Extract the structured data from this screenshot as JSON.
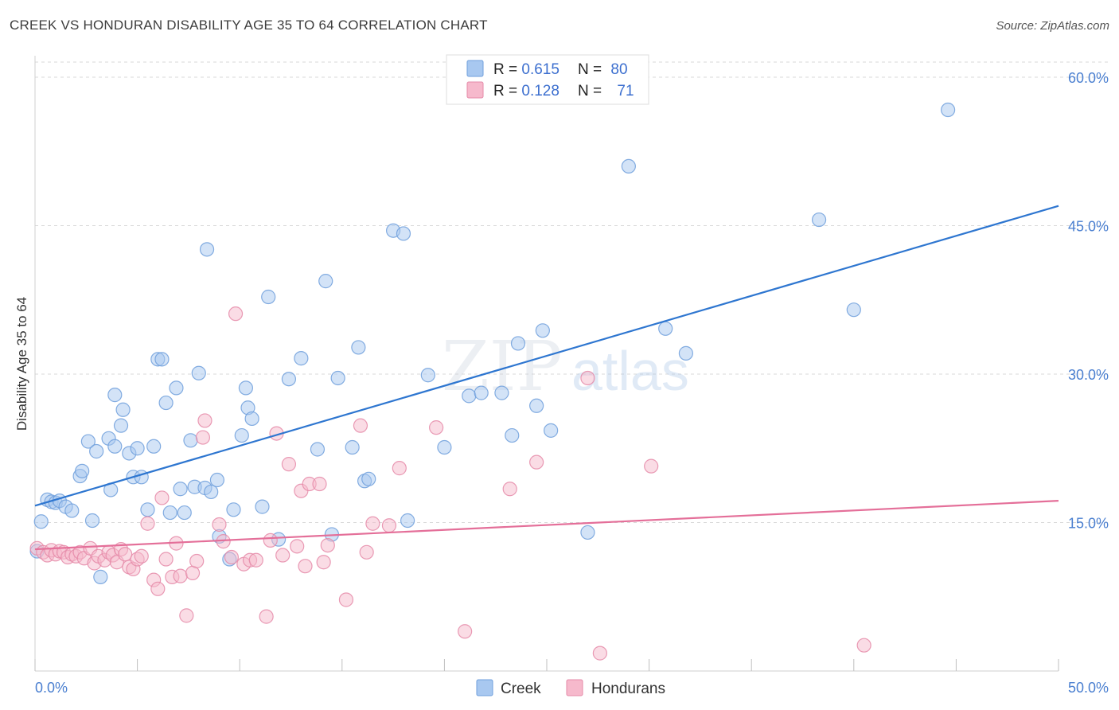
{
  "header": {
    "title": "CREEK VS HONDURAN DISABILITY AGE 35 TO 64 CORRELATION CHART",
    "source": "Source: ZipAtlas.com"
  },
  "watermark": {
    "zip": "ZIP",
    "atlas": "atlas"
  },
  "legend": {
    "rows": [
      {
        "r_label": "R = ",
        "r_value": "0.615",
        "n_label": "N = ",
        "n_value": "80",
        "color": "#a8c8f0",
        "stroke": "#6f9fdc"
      },
      {
        "r_label": "R = ",
        "r_value": "0.128",
        "n_label": "N = ",
        "n_value": "71",
        "color": "#f6b9cc",
        "stroke": "#e58aa8"
      }
    ]
  },
  "chart_data": {
    "type": "scatter",
    "title": "CREEK VS HONDURAN DISABILITY AGE 35 TO 64 CORRELATION CHART",
    "xlabel": "",
    "ylabel": "Disability Age 35 to 64",
    "xlim": [
      0,
      50
    ],
    "ylim": [
      0,
      60
    ],
    "x_tick_labels": [
      "0.0%",
      "50.0%"
    ],
    "y_ticks": [
      15,
      30,
      45,
      60
    ],
    "y_tick_labels": [
      "15.0%",
      "30.0%",
      "45.0%",
      "60.0%"
    ],
    "grid": true,
    "legend_position": "bottom-center",
    "series": [
      {
        "name": "Creek",
        "color": "#a8c8f0",
        "edge": "#6f9fdc",
        "line_color": "#2e76d0",
        "trend": {
          "x": [
            0,
            50
          ],
          "y": [
            16.7,
            47.0
          ]
        },
        "points": [
          [
            0.3,
            15.1
          ],
          [
            0.6,
            17.3
          ],
          [
            0.8,
            17.1
          ],
          [
            1.0,
            17.0
          ],
          [
            1.2,
            17.2
          ],
          [
            1.5,
            16.6
          ],
          [
            1.8,
            16.2
          ],
          [
            2.2,
            19.7
          ],
          [
            2.3,
            20.2
          ],
          [
            2.6,
            23.2
          ],
          [
            2.8,
            15.2
          ],
          [
            3.0,
            22.2
          ],
          [
            3.2,
            9.5
          ],
          [
            3.6,
            23.5
          ],
          [
            3.7,
            18.3
          ],
          [
            3.9,
            27.9
          ],
          [
            4.2,
            24.8
          ],
          [
            4.3,
            26.4
          ],
          [
            4.6,
            22.0
          ],
          [
            4.8,
            19.6
          ],
          [
            5.0,
            22.5
          ],
          [
            5.2,
            19.6
          ],
          [
            5.5,
            16.3
          ],
          [
            5.8,
            22.7
          ],
          [
            6.0,
            31.5
          ],
          [
            6.2,
            31.5
          ],
          [
            6.4,
            27.1
          ],
          [
            6.6,
            16.0
          ],
          [
            6.9,
            28.6
          ],
          [
            7.1,
            18.4
          ],
          [
            7.3,
            16.0
          ],
          [
            7.6,
            23.3
          ],
          [
            7.8,
            18.6
          ],
          [
            8.0,
            30.1
          ],
          [
            8.3,
            18.5
          ],
          [
            8.4,
            42.6
          ],
          [
            8.6,
            18.1
          ],
          [
            8.9,
            19.3
          ],
          [
            9.0,
            13.6
          ],
          [
            9.5,
            11.3
          ],
          [
            9.7,
            16.3
          ],
          [
            10.1,
            23.8
          ],
          [
            10.3,
            28.6
          ],
          [
            10.4,
            26.6
          ],
          [
            10.6,
            25.5
          ],
          [
            11.1,
            16.6
          ],
          [
            11.4,
            37.8
          ],
          [
            11.9,
            13.3
          ],
          [
            12.4,
            29.5
          ],
          [
            13.0,
            31.6
          ],
          [
            13.8,
            22.4
          ],
          [
            14.2,
            39.4
          ],
          [
            14.5,
            13.8
          ],
          [
            14.8,
            29.6
          ],
          [
            15.5,
            22.6
          ],
          [
            15.8,
            32.7
          ],
          [
            16.1,
            19.2
          ],
          [
            16.3,
            19.4
          ],
          [
            17.5,
            44.5
          ],
          [
            18.0,
            44.2
          ],
          [
            18.2,
            15.2
          ],
          [
            19.2,
            29.9
          ],
          [
            20.0,
            22.6
          ],
          [
            21.2,
            27.8
          ],
          [
            21.8,
            28.1
          ],
          [
            22.8,
            28.1
          ],
          [
            23.3,
            23.8
          ],
          [
            23.6,
            33.1
          ],
          [
            24.5,
            26.8
          ],
          [
            24.8,
            34.4
          ],
          [
            25.2,
            24.3
          ],
          [
            27.0,
            14.0
          ],
          [
            29.0,
            51.0
          ],
          [
            30.8,
            34.6
          ],
          [
            31.8,
            32.1
          ],
          [
            38.3,
            45.6
          ],
          [
            40.0,
            36.5
          ],
          [
            44.6,
            56.7
          ],
          [
            0.1,
            12.1
          ],
          [
            3.9,
            22.7
          ]
        ]
      },
      {
        "name": "Hondurans",
        "color": "#f6b9cc",
        "edge": "#e58aa8",
        "line_color": "#e46f99",
        "trend": {
          "x": [
            0,
            50
          ],
          "y": [
            12.3,
            17.2
          ]
        },
        "points": [
          [
            0.1,
            12.4
          ],
          [
            0.4,
            12.0
          ],
          [
            0.6,
            11.7
          ],
          [
            0.8,
            12.2
          ],
          [
            1.0,
            11.8
          ],
          [
            1.2,
            12.1
          ],
          [
            1.4,
            12.0
          ],
          [
            1.6,
            11.5
          ],
          [
            1.8,
            11.8
          ],
          [
            2.0,
            11.6
          ],
          [
            2.2,
            12.0
          ],
          [
            2.4,
            11.4
          ],
          [
            2.7,
            12.4
          ],
          [
            2.9,
            10.9
          ],
          [
            3.1,
            11.6
          ],
          [
            3.4,
            11.2
          ],
          [
            3.6,
            12.0
          ],
          [
            3.8,
            11.7
          ],
          [
            4.0,
            11.0
          ],
          [
            4.2,
            12.3
          ],
          [
            4.4,
            11.8
          ],
          [
            4.6,
            10.5
          ],
          [
            4.8,
            10.3
          ],
          [
            5.0,
            11.3
          ],
          [
            5.2,
            11.6
          ],
          [
            5.5,
            14.9
          ],
          [
            5.8,
            9.2
          ],
          [
            6.0,
            8.3
          ],
          [
            6.2,
            17.5
          ],
          [
            6.4,
            11.3
          ],
          [
            6.7,
            9.5
          ],
          [
            6.9,
            12.9
          ],
          [
            7.1,
            9.6
          ],
          [
            7.4,
            5.6
          ],
          [
            7.7,
            9.9
          ],
          [
            7.9,
            11.1
          ],
          [
            8.2,
            23.6
          ],
          [
            8.3,
            25.3
          ],
          [
            9.0,
            14.8
          ],
          [
            9.2,
            13.1
          ],
          [
            9.6,
            11.5
          ],
          [
            9.8,
            36.1
          ],
          [
            10.2,
            10.8
          ],
          [
            10.5,
            11.2
          ],
          [
            10.8,
            11.2
          ],
          [
            11.3,
            5.5
          ],
          [
            11.5,
            13.2
          ],
          [
            11.8,
            24.0
          ],
          [
            12.1,
            11.7
          ],
          [
            12.4,
            20.9
          ],
          [
            12.8,
            12.6
          ],
          [
            13.0,
            18.2
          ],
          [
            13.2,
            10.6
          ],
          [
            13.4,
            18.9
          ],
          [
            13.9,
            18.9
          ],
          [
            14.1,
            11.0
          ],
          [
            14.3,
            12.7
          ],
          [
            15.2,
            7.2
          ],
          [
            15.9,
            24.8
          ],
          [
            16.2,
            12.0
          ],
          [
            16.5,
            14.9
          ],
          [
            17.3,
            14.7
          ],
          [
            17.8,
            20.5
          ],
          [
            19.6,
            24.6
          ],
          [
            21.0,
            4.0
          ],
          [
            23.2,
            18.4
          ],
          [
            24.5,
            21.1
          ],
          [
            27.0,
            29.6
          ],
          [
            27.6,
            1.8
          ],
          [
            30.1,
            20.7
          ],
          [
            40.5,
            2.6
          ]
        ]
      }
    ]
  }
}
